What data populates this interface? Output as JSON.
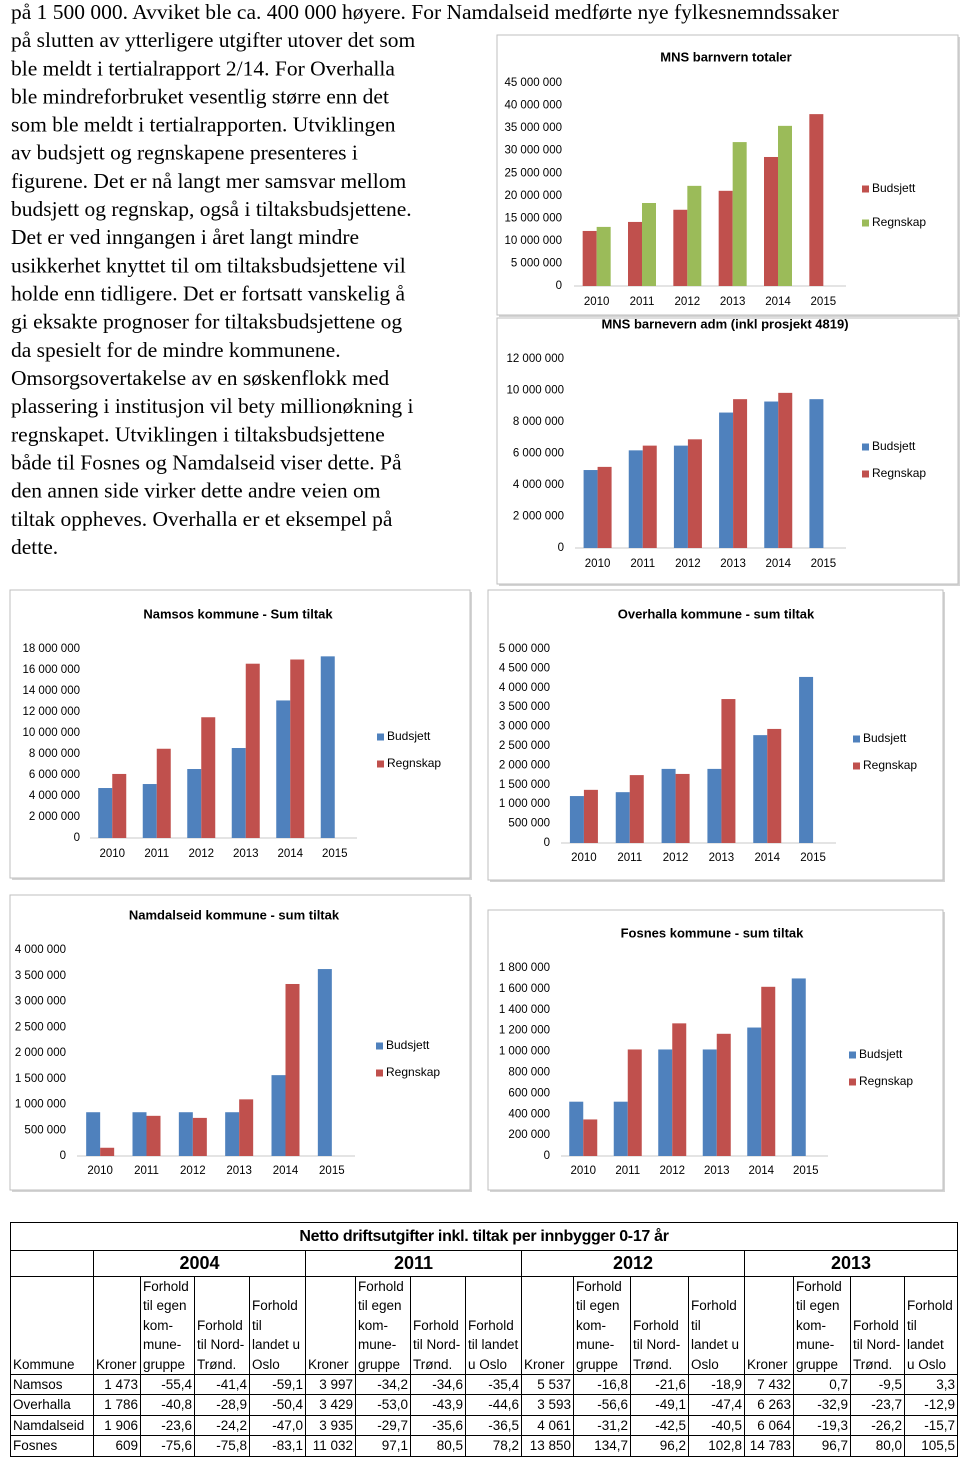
{
  "text": {
    "lines": [
      "på 1 500 000. Avviket ble ca. 400 000 høyere. For Namdalseid medførte nye fylkesnemndssaker",
      "på slutten av ytterligere utgifter utover det som",
      "ble meldt i tertialrapport 2/14. For Overhalla",
      "ble mindreforbruket vesentlig større enn det",
      "som ble meldt i tertialrapporten. Utviklingen",
      "av budsjett og regnskapene presenteres i",
      "figurene. Det er nå langt mer samsvar mellom",
      "budsjett og regnskap, også i tiltaksbudsjettene.",
      "Det er ved inngangen i året langt mindre",
      "usikkerhet knyttet til om tiltaksbudsjettene vil",
      "holde enn tidligere. Det er fortsatt vanskelig å",
      "gi eksakte prognoser for tiltaksbudsjettene og",
      "da spesielt for de mindre kommunene.",
      "Omsorgsovertakelse av en søskenflokk med",
      "plassering i institusjon vil bety millionøkning i",
      "regnskapet. Utviklingen i tiltaksbudsjettene",
      "både til Fosnes og Namdalseid viser dette. På",
      "den annen side virker dette andre veien om",
      "tiltak oppheves. Overhalla er et eksempel på",
      "dette."
    ]
  },
  "chart_data": [
    {
      "type": "bar",
      "title": "MNS barnvern totaler",
      "categories": [
        "2010",
        "2011",
        "2012",
        "2013",
        "2014",
        "2015"
      ],
      "series": [
        {
          "name": "Budsjett",
          "color": "#c0504d",
          "values": [
            12200000,
            14200000,
            16900000,
            21100000,
            28600000,
            38100000
          ]
        },
        {
          "name": "Regnskap",
          "color": "#9bbb59",
          "values": [
            13100000,
            18400000,
            22200000,
            31900000,
            35500000,
            null
          ]
        }
      ],
      "ylim": [
        0,
        45000000
      ],
      "yticks": [
        0,
        {
          "value": 5000000,
          "label": "5 000 000"
        },
        {
          "value": 10000000,
          "label": "10 000 000"
        },
        {
          "value": 15000000,
          "label": "15 000 000"
        },
        {
          "value": 20000000,
          "label": "20 000 000"
        },
        {
          "value": 25000000,
          "label": "25 000 000"
        },
        {
          "value": 30000000,
          "label": "30 000 000"
        },
        {
          "value": 35000000,
          "label": "35 000 000"
        },
        {
          "value": 40000000,
          "label": "40 000 000"
        },
        {
          "value": 45000000,
          "label": "45 000 000"
        }
      ],
      "legend": "right",
      "grid": false
    },
    {
      "type": "bar",
      "title": "MNS barnevern adm (inkl prosjekt 4819)",
      "categories": [
        "2010",
        "2011",
        "2012",
        "2013",
        "2014",
        "2015"
      ],
      "series": [
        {
          "name": "Budsjett",
          "color": "#4f81bd",
          "values": [
            4950000,
            6200000,
            6500000,
            8600000,
            9300000,
            9450000
          ]
        },
        {
          "name": "Regnskap",
          "color": "#c0504d",
          "values": [
            5150000,
            6500000,
            6900000,
            9450000,
            9850000,
            null
          ]
        }
      ],
      "ylim": [
        0,
        12000000
      ],
      "yticks": [
        0,
        {
          "value": 2000000,
          "label": "2 000 000"
        },
        {
          "value": 4000000,
          "label": "4 000 000"
        },
        {
          "value": 6000000,
          "label": "6 000 000"
        },
        {
          "value": 8000000,
          "label": "8 000 000"
        },
        {
          "value": 10000000,
          "label": "10 000 000"
        },
        {
          "value": 12000000,
          "label": "12 000 000"
        }
      ],
      "legend": "right",
      "grid": false
    },
    {
      "type": "bar",
      "title": "Namsos kommune - Sum tiltak",
      "categories": [
        "2010",
        "2011",
        "2012",
        "2013",
        "2014",
        "2015"
      ],
      "series": [
        {
          "name": "Budsjett",
          "color": "#4f81bd",
          "values": [
            4760000,
            5140000,
            6570000,
            8570000,
            13100000,
            17300000
          ]
        },
        {
          "name": "Regnskap",
          "color": "#c0504d",
          "values": [
            6100000,
            8500000,
            11500000,
            16600000,
            17000000,
            null
          ]
        }
      ],
      "ylim": [
        0,
        18000000
      ],
      "yticks": [
        0,
        {
          "value": 2000000,
          "label": "2 000 000"
        },
        {
          "value": 4000000,
          "label": "4 000 000"
        },
        {
          "value": 6000000,
          "label": "6 000 000"
        },
        {
          "value": 8000000,
          "label": "8 000 000"
        },
        {
          "value": 10000000,
          "label": "10 000 000"
        },
        {
          "value": 12000000,
          "label": "12 000 000"
        },
        {
          "value": 14000000,
          "label": "14 000 000"
        },
        {
          "value": 16000000,
          "label": "16 000 000"
        },
        {
          "value": 18000000,
          "label": "18 000 000"
        }
      ],
      "legend": "right",
      "grid": false
    },
    {
      "type": "bar",
      "title": "Overhalla kommune - sum tiltak",
      "categories": [
        "2010",
        "2011",
        "2012",
        "2013",
        "2014",
        "2015"
      ],
      "series": [
        {
          "name": "Budsjett",
          "color": "#4f81bd",
          "values": [
            1210000,
            1310000,
            1910000,
            1910000,
            2780000,
            4280000
          ]
        },
        {
          "name": "Regnskap",
          "color": "#c0504d",
          "values": [
            1370000,
            1750000,
            1780000,
            3710000,
            2940000,
            null
          ]
        }
      ],
      "ylim": [
        0,
        5000000
      ],
      "yticks": [
        0,
        {
          "value": 500000,
          "label": "500 000"
        },
        {
          "value": 1000000,
          "label": "1 000 000"
        },
        {
          "value": 1500000,
          "label": "1 500 000"
        },
        {
          "value": 2000000,
          "label": "2 000 000"
        },
        {
          "value": 2500000,
          "label": "2 500 000"
        },
        {
          "value": 3000000,
          "label": "3 000 000"
        },
        {
          "value": 3500000,
          "label": "3 500 000"
        },
        {
          "value": 4000000,
          "label": "4 000 000"
        },
        {
          "value": 4500000,
          "label": "4 500 000"
        },
        {
          "value": 5000000,
          "label": "5 000 000"
        }
      ],
      "legend": "right",
      "grid": false
    },
    {
      "type": "bar",
      "title": "Namdalseid kommune - sum tiltak",
      "categories": [
        "2010",
        "2011",
        "2012",
        "2013",
        "2014",
        "2015"
      ],
      "series": [
        {
          "name": "Budsjett",
          "color": "#4f81bd",
          "values": [
            850000,
            850000,
            850000,
            850000,
            1570000,
            3630000
          ]
        },
        {
          "name": "Regnskap",
          "color": "#c0504d",
          "values": [
            160000,
            780000,
            740000,
            1100000,
            3340000,
            null
          ]
        }
      ],
      "ylim": [
        0,
        4000000
      ],
      "yticks": [
        0,
        {
          "value": 500000,
          "label": "500 000"
        },
        {
          "value": 1000000,
          "label": "1 000 000"
        },
        {
          "value": 1500000,
          "label": "1 500 000"
        },
        {
          "value": 2000000,
          "label": "2 000 000"
        },
        {
          "value": 2500000,
          "label": "2 500 000"
        },
        {
          "value": 3000000,
          "label": "3 000 000"
        },
        {
          "value": 3500000,
          "label": "3 500 000"
        },
        {
          "value": 4000000,
          "label": "4 000 000"
        }
      ],
      "legend": "right",
      "grid": false
    },
    {
      "type": "bar",
      "title": "Fosnes kommune - sum tiltak",
      "categories": [
        "2010",
        "2011",
        "2012",
        "2013",
        "2014",
        "2015"
      ],
      "series": [
        {
          "name": "Budsjett",
          "color": "#4f81bd",
          "values": [
            520000,
            520000,
            1020000,
            1020000,
            1230000,
            1700000
          ]
        },
        {
          "name": "Regnskap",
          "color": "#c0504d",
          "values": [
            350000,
            1020000,
            1270000,
            1170000,
            1620000,
            null
          ]
        }
      ],
      "ylim": [
        0,
        1800000
      ],
      "yticks": [
        0,
        {
          "value": 200000,
          "label": "200 000"
        },
        {
          "value": 400000,
          "label": "400 000"
        },
        {
          "value": 600000,
          "label": "600 000"
        },
        {
          "value": 800000,
          "label": "800 000"
        },
        {
          "value": 1000000,
          "label": "1 000 000"
        },
        {
          "value": 1200000,
          "label": "1 200 000"
        },
        {
          "value": 1400000,
          "label": "1 400 000"
        },
        {
          "value": 1600000,
          "label": "1 600 000"
        },
        {
          "value": 1800000,
          "label": "1 800 000"
        }
      ],
      "legend": "right",
      "grid": false
    }
  ],
  "table": {
    "title": "Netto driftsutgifter inkl. tiltak per innbygger 0-17 år",
    "years": [
      "2004",
      "2011",
      "2012",
      "2013"
    ],
    "header": [
      "Kommune",
      "Kroner",
      "Forhold\ntil egen\nkom-\nmune-\ngruppe",
      "Forhold\ntil Nord-\nTrønd.",
      "Forhold\ntil\nlandet u\nOslo",
      "Kroner",
      "Forhold\ntil egen\nkom-\nmune-\ngruppe",
      "Forhold\ntil Nord-\nTrønd.",
      "Forhold\ntil landet\nu Oslo",
      "Kroner",
      "Forhold\ntil egen\nkom-\nmune-\ngruppe",
      "Forhold\ntil Nord-\nTrønd.",
      "Forhold\ntil\nlandet u\nOslo",
      "Kroner",
      "Forhold\ntil egen\nkom-\nmune-\ngruppe",
      "Forhold\ntil Nord-\nTrønd.",
      "Forhold\ntil\nlandet\nu Oslo"
    ],
    "rows": [
      [
        "Namsos",
        "1 473",
        "-55,4",
        "-41,4",
        "-59,1",
        "3 997",
        "-34,2",
        "-34,6",
        "-35,4",
        "5 537",
        "-16,8",
        "-21,6",
        "-18,9",
        "7 432",
        "0,7",
        "-9,5",
        "3,3"
      ],
      [
        "Overhalla",
        "1 786",
        "-40,8",
        "-28,9",
        "-50,4",
        "3 429",
        "-53,0",
        "-43,9",
        "-44,6",
        "3 593",
        "-56,6",
        "-49,1",
        "-47,4",
        "6 263",
        "-32,9",
        "-23,7",
        "-12,9"
      ],
      [
        "Namdalseid",
        "1 906",
        "-23,6",
        "-24,2",
        "-47,0",
        "3 935",
        "-29,7",
        "-35,6",
        "-36,5",
        "4 061",
        "-31,2",
        "-42,5",
        "-40,5",
        "6 064",
        "-19,3",
        "-26,2",
        "-15,7"
      ],
      [
        "Fosnes",
        "609",
        "-75,6",
        "-75,8",
        "-83,1",
        "11 032",
        "97,1",
        "80,5",
        "78,2",
        "13 850",
        "134,7",
        "96,2",
        "102,8",
        "14 783",
        "96,7",
        "80,0",
        "105,5"
      ]
    ]
  }
}
